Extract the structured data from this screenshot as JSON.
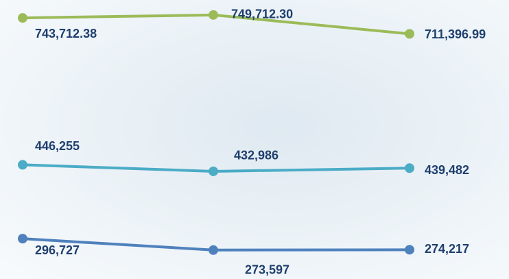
{
  "chart_data": {
    "type": "line",
    "categories": [
      null,
      null,
      null
    ],
    "series": [
      {
        "color": "#9bbb59",
        "values": [
          743712.38,
          749712.3,
          711396.99
        ],
        "value_labels": [
          "743,712.38",
          "749,712.30",
          "711,396.99"
        ]
      },
      {
        "color": "#4bacc6",
        "values": [
          446255,
          432986,
          439482
        ],
        "value_labels": [
          "446,255",
          "432,986",
          "439,482"
        ]
      },
      {
        "color": "#4f81bd",
        "values": [
          296727,
          273597,
          274217
        ],
        "value_labels": [
          "296,727",
          "273,597",
          "274,217"
        ]
      }
    ],
    "ylim": [
      215000,
      780000
    ]
  }
}
